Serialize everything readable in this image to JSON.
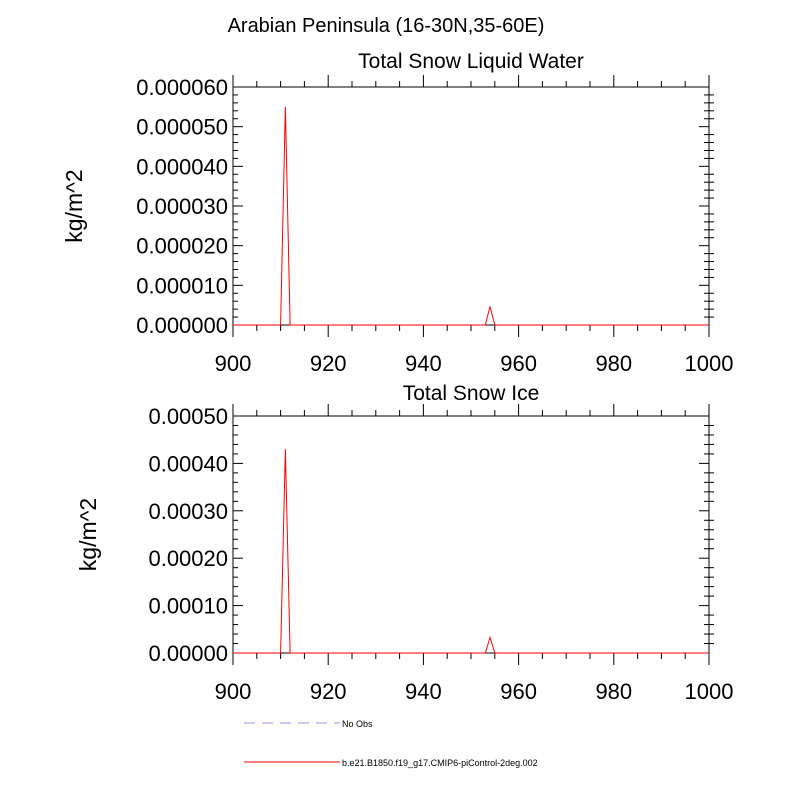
{
  "figure": {
    "title": "Arabian Peninsula (16-30N,35-60E)"
  },
  "legend": {
    "placement": "bottom-left",
    "items": [
      {
        "label": "No Obs",
        "color": "#b8b8e8",
        "style": "dashed"
      },
      {
        "label": "b.e21.B1850.f19_g17.CMIP6-piControl-2deg.002",
        "color": "#ff0000",
        "style": "solid"
      }
    ]
  },
  "chart_data": [
    {
      "type": "line",
      "title": "Total Snow Liquid Water",
      "xlabel": "",
      "ylabel": "kg/m^2",
      "xlim": [
        900,
        1000
      ],
      "ylim": [
        0,
        6e-05
      ],
      "x_ticks": [
        900,
        920,
        940,
        960,
        980,
        1000
      ],
      "x_tick_labels": [
        "900",
        "920",
        "940",
        "960",
        "980",
        "1000"
      ],
      "y_ticks": [
        0,
        1e-05,
        2e-05,
        3e-05,
        4e-05,
        5e-05,
        6e-05
      ],
      "y_tick_labels": [
        "0.000000",
        "0.000010",
        "0.000020",
        "0.000030",
        "0.000040",
        "0.000050",
        "0.000060"
      ],
      "grid": false,
      "series": [
        {
          "name": "b.e21.B1850.f19_g17.CMIP6-piControl-2deg.002",
          "color": "#ff0000",
          "x": [
            900,
            910,
            911,
            912,
            953,
            954,
            955,
            1000
          ],
          "y": [
            0,
            0,
            5.5e-05,
            0,
            0,
            4.7e-06,
            0,
            0
          ]
        }
      ]
    },
    {
      "type": "line",
      "title": "Total Snow Ice",
      "xlabel": "",
      "ylabel": "kg/m^2",
      "xlim": [
        900,
        1000
      ],
      "ylim": [
        0,
        0.0005
      ],
      "x_ticks": [
        900,
        920,
        940,
        960,
        980,
        1000
      ],
      "x_tick_labels": [
        "900",
        "920",
        "940",
        "960",
        "980",
        "1000"
      ],
      "y_ticks": [
        0,
        0.0001,
        0.0002,
        0.0003,
        0.0004,
        0.0005
      ],
      "y_tick_labels": [
        "0.00000",
        "0.00010",
        "0.00020",
        "0.00030",
        "0.00040",
        "0.00050"
      ],
      "grid": false,
      "series": [
        {
          "name": "b.e21.B1850.f19_g17.CMIP6-piControl-2deg.002",
          "color": "#ff0000",
          "x": [
            900,
            910,
            911,
            912,
            953,
            954,
            955,
            1000
          ],
          "y": [
            0,
            0,
            0.00043,
            0,
            0,
            3.3e-05,
            0,
            0
          ]
        }
      ]
    }
  ]
}
